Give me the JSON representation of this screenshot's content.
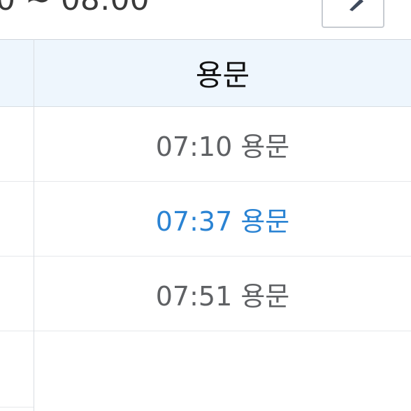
{
  "header": {
    "time_range": "0 ~ 08:00",
    "edit_icon": "pencil-icon"
  },
  "table": {
    "column_header": "용문",
    "rows": [
      {
        "time": "07:10 용문",
        "highlighted": false
      },
      {
        "time": "07:37 용문",
        "highlighted": true
      },
      {
        "time": "07:51 용문",
        "highlighted": false
      }
    ]
  },
  "colors": {
    "header_bg": "#eef6fd",
    "highlight": "#2a83d3",
    "text_gray": "#5f6164"
  }
}
